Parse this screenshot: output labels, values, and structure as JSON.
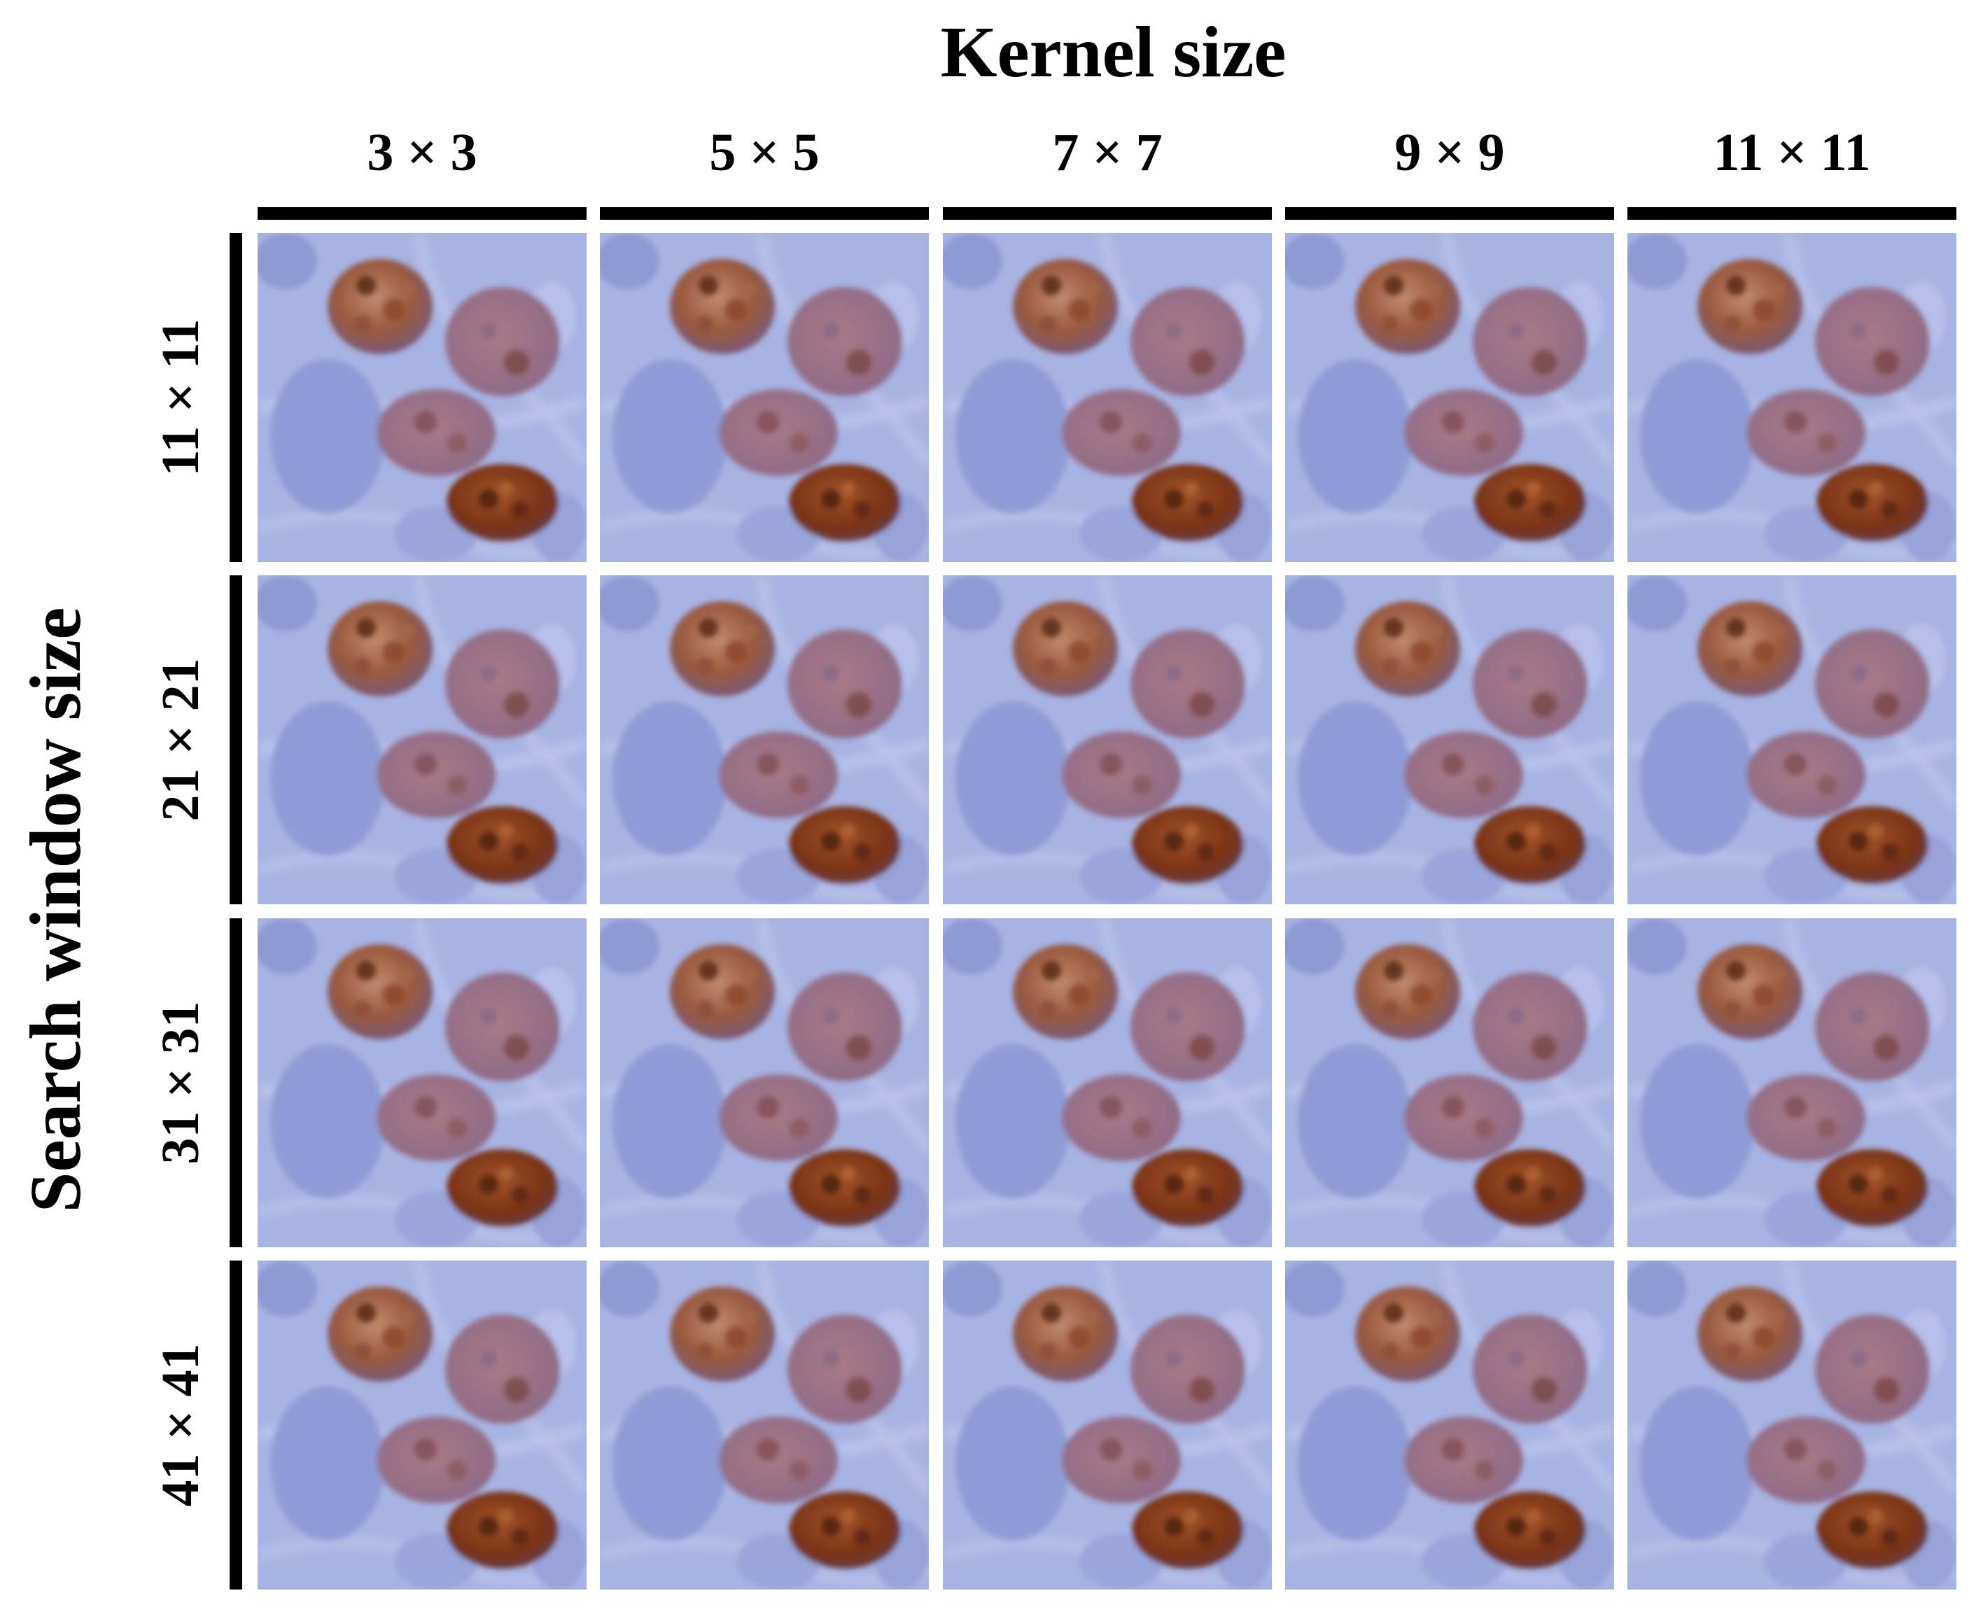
{
  "figure": {
    "title": "Kernel size",
    "side_title": "Search window size",
    "columns": [
      {
        "label": "3 × 3"
      },
      {
        "label": "5 × 5"
      },
      {
        "label": "7 × 7"
      },
      {
        "label": "9 × 9"
      },
      {
        "label": "11 × 11"
      }
    ],
    "rows": [
      {
        "label": "11 × 11"
      },
      {
        "label": "21 × 21"
      },
      {
        "label": "31 × 31"
      },
      {
        "label": "41 × 41"
      }
    ],
    "colors": {
      "background_tissue": "#a7b3e2",
      "pale_nucleus": "#8f9bd6",
      "brown_nucleus": "#9a5a3e",
      "dark_brown_nucleus": "#7a3416",
      "mixed_nucleus": "#8e6a86"
    }
  }
}
